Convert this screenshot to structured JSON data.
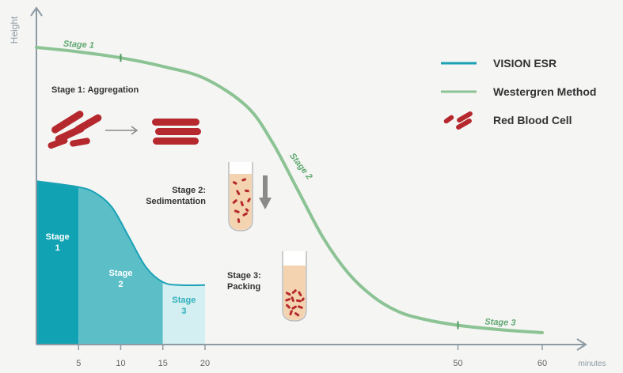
{
  "chart_data": {
    "type": "line",
    "xlabel": "minutes",
    "ylabel": "Height",
    "xticks": [
      5,
      10,
      15,
      20,
      50,
      60
    ],
    "xlim": [
      0,
      64
    ],
    "legend_position": "top-right",
    "legend": [
      {
        "label": "VISION ESR",
        "marker": "line",
        "color": "#1aa1b5"
      },
      {
        "label": "Westergren Method",
        "marker": "line",
        "color": "#8cc394"
      },
      {
        "label": "Red Blood Cell",
        "marker": "rbc-icon",
        "color": "#b5292e"
      }
    ],
    "series": [
      {
        "name": "Westergren Method",
        "color": "#8cc394",
        "x": [
          0,
          5,
          10,
          15,
          20,
          25,
          28,
          31,
          34,
          37,
          40,
          43,
          46,
          50,
          55,
          60
        ],
        "y": [
          100,
          98.5,
          96.5,
          93.6,
          89.5,
          80,
          68,
          52,
          36,
          24,
          16,
          11,
          8.5,
          6.5,
          5,
          4
        ],
        "stage_labels": [
          {
            "text": "Stage 1",
            "x": 5
          },
          {
            "text": "Stage 2",
            "x": 30
          },
          {
            "text": "Stage 3",
            "x": 55
          }
        ],
        "stage_ticks": [
          10,
          50
        ]
      },
      {
        "name": "VISION ESR",
        "color": "#1aa1b5",
        "x": [
          0,
          5,
          7,
          9,
          11,
          13,
          15,
          17,
          20
        ],
        "y": [
          55,
          53,
          51,
          46,
          36,
          26,
          21,
          20,
          20
        ],
        "stages": [
          {
            "label": "Stage 1",
            "x": [
              0,
              5
            ],
            "color": "#11a3b3",
            "text_color": "#ffffff"
          },
          {
            "label": "Stage 2",
            "x": [
              5,
              15
            ],
            "color": "#5cbfc8",
            "text_color": "#ffffff"
          },
          {
            "label": "Stage 3",
            "x": [
              15,
              20
            ],
            "color": "#d4eff1",
            "text_color": "#2fb0bc"
          }
        ]
      }
    ],
    "annotations": [
      {
        "text": "Stage 1: Aggregation"
      },
      {
        "text": "Stage 2: Sedimentation"
      },
      {
        "text": "Stage 3: Packing"
      }
    ]
  },
  "colors": {
    "axis": "#8e9aa3",
    "rbc": "#b5292e",
    "tube_fill": "#f4d3b0",
    "arrow": "#8a8a8a",
    "label_text": "#333333"
  }
}
